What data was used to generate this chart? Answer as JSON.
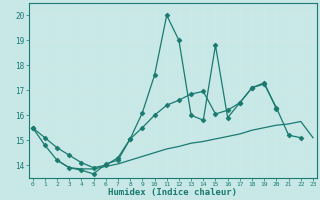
{
  "x": [
    0,
    1,
    2,
    3,
    4,
    5,
    6,
    7,
    8,
    9,
    10,
    11,
    12,
    13,
    14,
    15,
    16,
    17,
    18,
    19,
    20,
    21,
    22,
    23
  ],
  "line_jagged": [
    15.5,
    14.8,
    14.2,
    13.9,
    13.8,
    13.65,
    14.05,
    14.2,
    15.05,
    16.1,
    17.6,
    20.0,
    19.0,
    16.0,
    15.8,
    18.8,
    15.9,
    16.5,
    17.1,
    17.25,
    16.3,
    15.2,
    15.1,
    null
  ],
  "line_upper": [
    15.5,
    15.1,
    14.7,
    14.4,
    14.1,
    13.9,
    14.0,
    14.3,
    15.05,
    15.5,
    16.0,
    16.4,
    16.6,
    16.85,
    16.95,
    16.05,
    16.2,
    16.5,
    17.1,
    17.3,
    16.25,
    null,
    null,
    null
  ],
  "line_lower": [
    null,
    null,
    14.2,
    13.9,
    13.85,
    13.85,
    13.95,
    14.05,
    14.2,
    14.35,
    14.5,
    14.65,
    14.75,
    14.88,
    14.95,
    15.05,
    15.15,
    15.25,
    15.4,
    15.5,
    15.6,
    15.65,
    15.75,
    15.1
  ],
  "bg_color": "#c8e8e8",
  "line_color": "#1a7a6e",
  "grid_color": "#e0f0f0",
  "marker": "D",
  "marker_size": 2.5,
  "ylim": [
    13.5,
    20.5
  ],
  "xlim": [
    -0.3,
    23.3
  ],
  "yticks": [
    14,
    15,
    16,
    17,
    18,
    19,
    20
  ],
  "xticks": [
    0,
    1,
    2,
    3,
    4,
    5,
    6,
    7,
    8,
    9,
    10,
    11,
    12,
    13,
    14,
    15,
    16,
    17,
    18,
    19,
    20,
    21,
    22,
    23
  ],
  "xlabel": "Humidex (Indice chaleur)"
}
